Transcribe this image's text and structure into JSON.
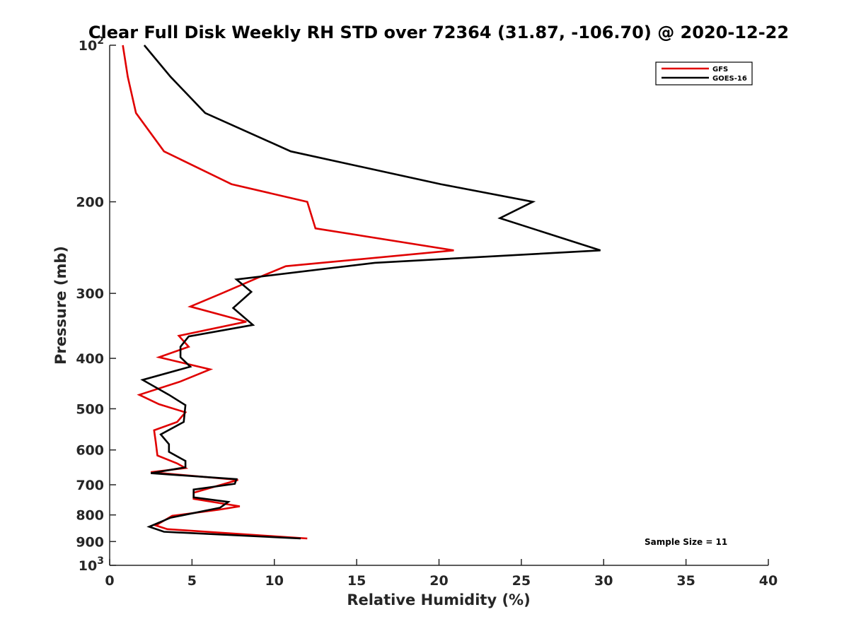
{
  "chart_data": {
    "type": "line",
    "title": "Clear Full Disk Weekly RH STD over 72364 (31.87, -106.70) @ 2020-12-22",
    "xlabel": "Relative Humidity (%)",
    "ylabel": "Pressure (mb)",
    "xlim": [
      0,
      40
    ],
    "ylim": [
      100,
      1000
    ],
    "y_scale": "log",
    "y_reversed": true,
    "grid": false,
    "legend_position": "top-right",
    "x_ticks": [
      0,
      5,
      10,
      15,
      20,
      25,
      30,
      35,
      40
    ],
    "x_tick_labels": [
      "0",
      "5",
      "10",
      "15",
      "20",
      "25",
      "30",
      "35",
      "40"
    ],
    "y_ticks": [
      100,
      200,
      300,
      400,
      500,
      600,
      700,
      800,
      900,
      1000
    ],
    "y_tick_labels": [
      {
        "base": "10",
        "exp": "2"
      },
      {
        "base": "200",
        "exp": ""
      },
      {
        "base": "300",
        "exp": ""
      },
      {
        "base": "400",
        "exp": ""
      },
      {
        "base": "500",
        "exp": ""
      },
      {
        "base": "600",
        "exp": ""
      },
      {
        "base": "700",
        "exp": ""
      },
      {
        "base": "800",
        "exp": ""
      },
      {
        "base": "900",
        "exp": ""
      },
      {
        "base": "10",
        "exp": "3"
      }
    ],
    "annotation": "Sample Size = 11",
    "series": [
      {
        "name": "GFS",
        "color": "#e00000",
        "points": [
          [
            0.8,
            100
          ],
          [
            1.1,
            115
          ],
          [
            1.6,
            135
          ],
          [
            3.3,
            160
          ],
          [
            7.4,
            185
          ],
          [
            12.0,
            200
          ],
          [
            12.5,
            225
          ],
          [
            20.9,
            248
          ],
          [
            10.7,
            266
          ],
          [
            9.0,
            280
          ],
          [
            6.8,
            300
          ],
          [
            4.9,
            318
          ],
          [
            8.3,
            340
          ],
          [
            4.2,
            362
          ],
          [
            4.8,
            380
          ],
          [
            3.0,
            398
          ],
          [
            6.1,
            420
          ],
          [
            4.3,
            443
          ],
          [
            1.8,
            470
          ],
          [
            3.0,
            490
          ],
          [
            4.6,
            508
          ],
          [
            4.1,
            530
          ],
          [
            2.7,
            550
          ],
          [
            2.8,
            580
          ],
          [
            2.9,
            615
          ],
          [
            4.1,
            637
          ],
          [
            4.6,
            650
          ],
          [
            2.5,
            662
          ],
          [
            7.8,
            685
          ],
          [
            5.1,
            725
          ],
          [
            5.1,
            745
          ],
          [
            7.9,
            770
          ],
          [
            6.6,
            782
          ],
          [
            3.8,
            803
          ],
          [
            2.8,
            838
          ],
          [
            3.5,
            852
          ],
          [
            12.0,
            888
          ]
        ]
      },
      {
        "name": "GOES-16",
        "color": "#000000",
        "points": [
          [
            2.1,
            100
          ],
          [
            3.7,
            115
          ],
          [
            5.8,
            135
          ],
          [
            11.0,
            160
          ],
          [
            20.1,
            185
          ],
          [
            25.7,
            200
          ],
          [
            23.7,
            215
          ],
          [
            29.8,
            248
          ],
          [
            16.1,
            262
          ],
          [
            7.7,
            282
          ],
          [
            8.6,
            298
          ],
          [
            7.5,
            320
          ],
          [
            8.7,
            345
          ],
          [
            4.8,
            363
          ],
          [
            4.3,
            380
          ],
          [
            4.3,
            398
          ],
          [
            4.9,
            415
          ],
          [
            2.0,
            440
          ],
          [
            3.6,
            470
          ],
          [
            4.6,
            492
          ],
          [
            4.5,
            530
          ],
          [
            3.1,
            560
          ],
          [
            3.6,
            585
          ],
          [
            3.6,
            605
          ],
          [
            4.6,
            630
          ],
          [
            4.6,
            648
          ],
          [
            2.5,
            665
          ],
          [
            7.7,
            683
          ],
          [
            7.6,
            697
          ],
          [
            5.1,
            715
          ],
          [
            5.1,
            740
          ],
          [
            7.2,
            755
          ],
          [
            6.7,
            775
          ],
          [
            3.7,
            810
          ],
          [
            2.4,
            843
          ],
          [
            3.3,
            862
          ],
          [
            11.6,
            888
          ]
        ]
      }
    ]
  }
}
